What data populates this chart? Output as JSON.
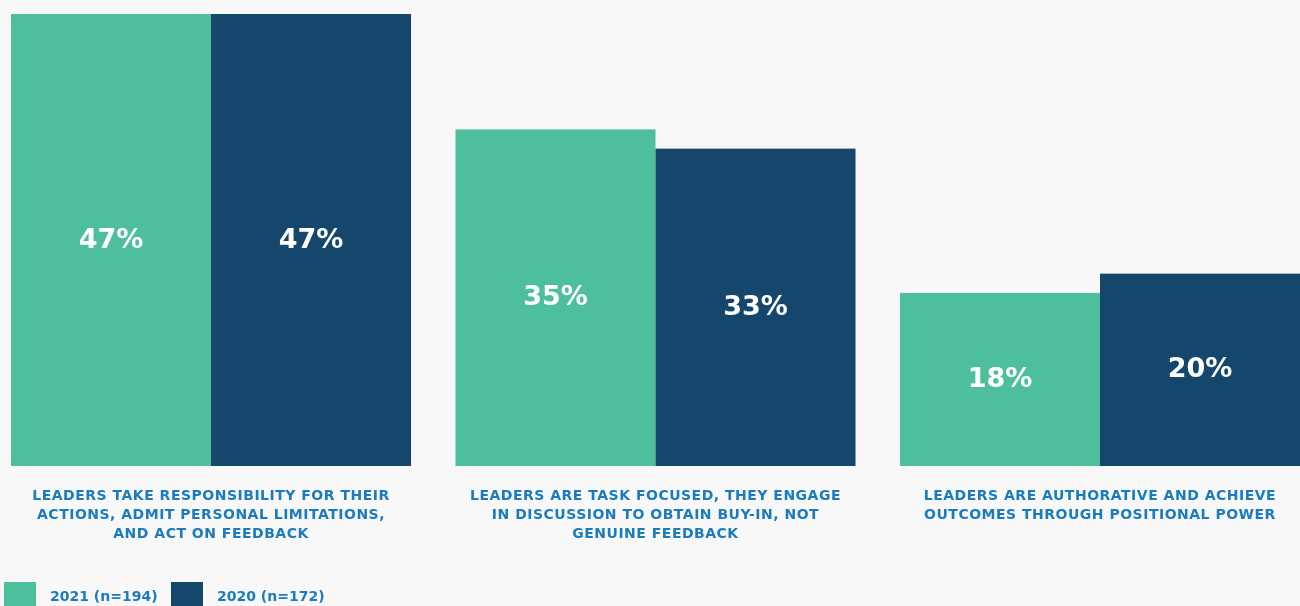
{
  "chart_data": {
    "type": "bar",
    "categories": [
      "LEADERS TAKE RESPONSIBILITY FOR THEIR ACTIONS, ADMIT PERSONAL LIMITATIONS, AND ACT ON FEEDBACK",
      "LEADERS ARE TASK FOCUSED, THEY ENGAGE IN DISCUSSION TO OBTAIN BUY-IN, NOT GENUINE FEEDBACK",
      "LEADERS ARE AUTHORATIVE AND ACHIEVE OUTCOMES THROUGH POSITIONAL POWER"
    ],
    "series": [
      {
        "name": "2021 (n=194)",
        "color": "#4dbf9c",
        "values": [
          47,
          35,
          18
        ],
        "value_labels": [
          "47%",
          "35%",
          "18%"
        ]
      },
      {
        "name": "2020 (n=172)",
        "color": "#14476b",
        "values": [
          47,
          33,
          20
        ],
        "value_labels": [
          "47%",
          "33%",
          "20%"
        ]
      }
    ],
    "legend": "bottom left"
  }
}
